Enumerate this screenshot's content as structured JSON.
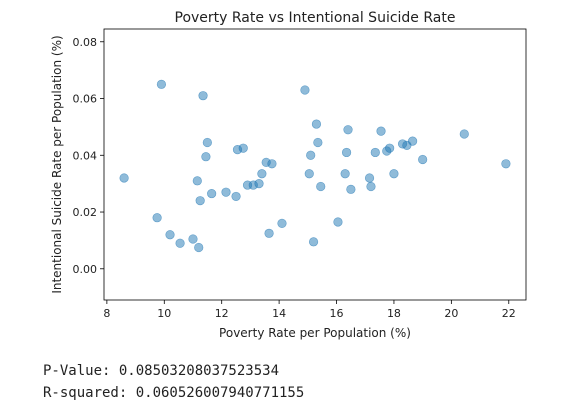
{
  "chart_data": {
    "type": "scatter",
    "title": "Poverty Rate vs Intentional Suicide Rate",
    "xlabel": "Poverty Rate per Population (%)",
    "ylabel": "Intentional Suicide Rate per Population (%)",
    "xlim": [
      7.9,
      22.6
    ],
    "ylim": [
      -0.011,
      0.0845
    ],
    "xticks": [
      "8",
      "10",
      "12",
      "14",
      "16",
      "18",
      "20",
      "22"
    ],
    "yticks": [
      "0.00",
      "0.02",
      "0.04",
      "0.06",
      "0.08"
    ],
    "grid": false,
    "marker_color": "#1f77b4",
    "points": [
      {
        "x": 8.6,
        "y": 0.032
      },
      {
        "x": 9.75,
        "y": 0.018
      },
      {
        "x": 9.9,
        "y": 0.065
      },
      {
        "x": 10.2,
        "y": 0.012
      },
      {
        "x": 10.55,
        "y": 0.009
      },
      {
        "x": 11.0,
        "y": 0.0105
      },
      {
        "x": 11.15,
        "y": 0.031
      },
      {
        "x": 11.2,
        "y": 0.0075
      },
      {
        "x": 11.25,
        "y": 0.024
      },
      {
        "x": 11.35,
        "y": 0.061
      },
      {
        "x": 11.45,
        "y": 0.0395
      },
      {
        "x": 11.5,
        "y": 0.0445
      },
      {
        "x": 11.65,
        "y": 0.0265
      },
      {
        "x": 12.15,
        "y": 0.027
      },
      {
        "x": 12.5,
        "y": 0.0255
      },
      {
        "x": 12.55,
        "y": 0.042
      },
      {
        "x": 12.75,
        "y": 0.0425
      },
      {
        "x": 12.9,
        "y": 0.0295
      },
      {
        "x": 13.1,
        "y": 0.0295
      },
      {
        "x": 13.3,
        "y": 0.03
      },
      {
        "x": 13.4,
        "y": 0.0335
      },
      {
        "x": 13.55,
        "y": 0.0375
      },
      {
        "x": 13.65,
        "y": 0.0125
      },
      {
        "x": 13.75,
        "y": 0.037
      },
      {
        "x": 14.1,
        "y": 0.016
      },
      {
        "x": 14.9,
        "y": 0.063
      },
      {
        "x": 15.05,
        "y": 0.0335
      },
      {
        "x": 15.1,
        "y": 0.04
      },
      {
        "x": 15.2,
        "y": 0.0095
      },
      {
        "x": 15.3,
        "y": 0.051
      },
      {
        "x": 15.35,
        "y": 0.0445
      },
      {
        "x": 15.45,
        "y": 0.029
      },
      {
        "x": 16.05,
        "y": 0.0165
      },
      {
        "x": 16.3,
        "y": 0.0335
      },
      {
        "x": 16.35,
        "y": 0.041
      },
      {
        "x": 16.4,
        "y": 0.049
      },
      {
        "x": 16.5,
        "y": 0.028
      },
      {
        "x": 17.15,
        "y": 0.032
      },
      {
        "x": 17.2,
        "y": 0.029
      },
      {
        "x": 17.35,
        "y": 0.041
      },
      {
        "x": 17.55,
        "y": 0.0485
      },
      {
        "x": 17.75,
        "y": 0.0415
      },
      {
        "x": 17.85,
        "y": 0.0425
      },
      {
        "x": 18.0,
        "y": 0.0335
      },
      {
        "x": 18.3,
        "y": 0.044
      },
      {
        "x": 18.45,
        "y": 0.0435
      },
      {
        "x": 18.65,
        "y": 0.045
      },
      {
        "x": 19.0,
        "y": 0.0385
      },
      {
        "x": 20.45,
        "y": 0.0475
      },
      {
        "x": 21.9,
        "y": 0.037
      }
    ]
  },
  "stats": {
    "p_value_line": "P-Value: 0.08503208037523534",
    "r_squared_line": "R-squared: 0.060526007940771155"
  }
}
